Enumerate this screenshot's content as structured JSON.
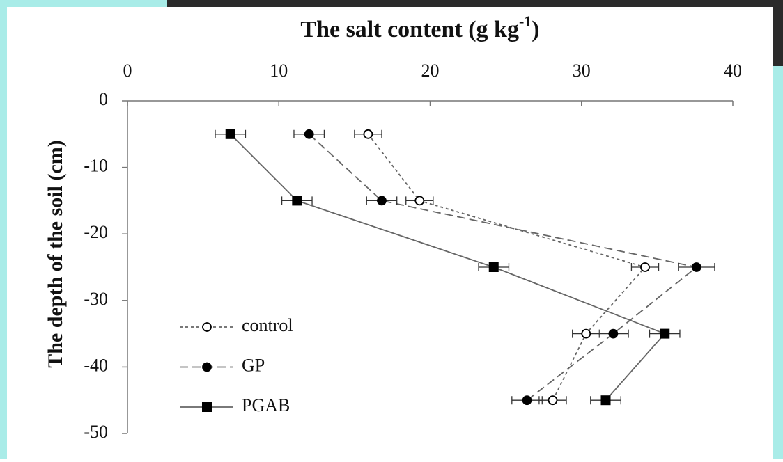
{
  "chart_data": {
    "type": "line",
    "x_label": {
      "text": "The salt content  (g kg",
      "superscript": "-1",
      "suffix": ")"
    },
    "y_label": "The depth of the soil (cm)",
    "y": [
      -5,
      -15,
      -25,
      -35,
      -45
    ],
    "xlim": [
      0,
      40
    ],
    "xticks": [
      0,
      10,
      20,
      30,
      40
    ],
    "ylim": [
      -50,
      0
    ],
    "yticks": [
      0,
      -10,
      -20,
      -30,
      -40,
      -50
    ],
    "legend": "lower left",
    "series": [
      {
        "name": "control",
        "color": "#666666",
        "line_style": "dotted",
        "marker": "open-circle",
        "x": [
          15.9,
          19.3,
          34.2,
          30.3,
          28.1
        ],
        "xerr": [
          0.9,
          0.9,
          0.9,
          0.9,
          0.9
        ]
      },
      {
        "name": "GP",
        "color": "#666666",
        "line_style": "dashed",
        "marker": "circle",
        "x": [
          12.0,
          16.8,
          37.6,
          32.1,
          26.4
        ],
        "xerr": [
          1.0,
          1.0,
          1.2,
          1.0,
          1.0
        ]
      },
      {
        "name": "PGAB",
        "color": "#666666",
        "line_style": "solid",
        "marker": "square",
        "x": [
          6.8,
          11.2,
          24.2,
          35.5,
          31.6
        ],
        "xerr": [
          1.0,
          1.0,
          1.0,
          1.0,
          1.0
        ]
      }
    ]
  }
}
